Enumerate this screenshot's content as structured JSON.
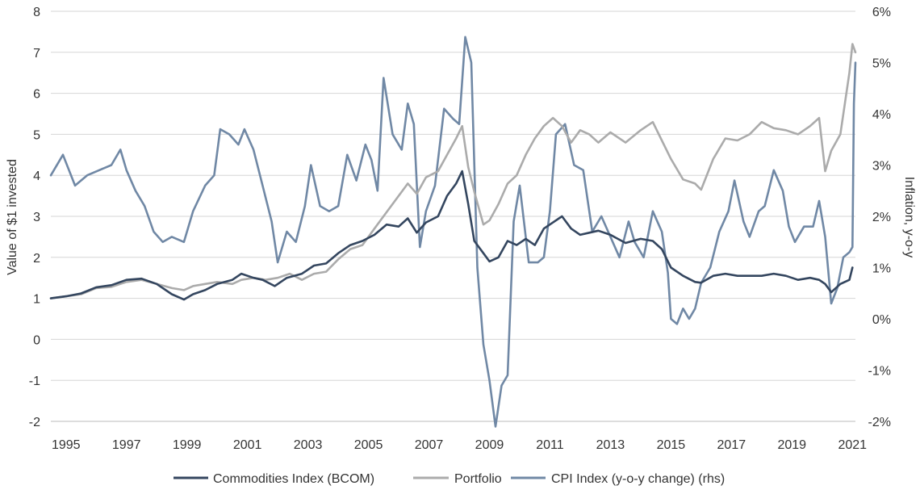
{
  "chart_data": {
    "type": "line",
    "title": "",
    "ylabel": "Value of $1 invested",
    "y2label": "Inflation, y-o-y",
    "ylim": [
      -2,
      8
    ],
    "y2lim": [
      -2,
      6
    ],
    "xlim": [
      1994.5,
      2021.1
    ],
    "grid": true,
    "legend_position": "bottom",
    "x_ticks": [
      "1995",
      "1997",
      "1999",
      "2001",
      "2003",
      "2005",
      "2007",
      "2009",
      "2011",
      "2013",
      "2015",
      "2017",
      "2019",
      "2021"
    ],
    "y_ticks": [
      "-2",
      "-1",
      "0",
      "1",
      "2",
      "3",
      "4",
      "5",
      "6",
      "7",
      "8"
    ],
    "y2_ticks": [
      "-2%",
      "-1%",
      "0%",
      "1%",
      "2%",
      "3%",
      "4%",
      "5%",
      "6%"
    ],
    "series": [
      {
        "name": "Commodities Index (BCOM)",
        "axis": "left",
        "color": "#34465f",
        "points": [
          [
            1994.5,
            1.0
          ],
          [
            1995.0,
            1.05
          ],
          [
            1995.5,
            1.12
          ],
          [
            1996.0,
            1.27
          ],
          [
            1996.5,
            1.32
          ],
          [
            1997.0,
            1.45
          ],
          [
            1997.5,
            1.48
          ],
          [
            1998.0,
            1.35
          ],
          [
            1998.5,
            1.1
          ],
          [
            1998.9,
            0.97
          ],
          [
            1999.2,
            1.1
          ],
          [
            1999.6,
            1.2
          ],
          [
            2000.0,
            1.35
          ],
          [
            2000.5,
            1.45
          ],
          [
            2000.8,
            1.6
          ],
          [
            2001.2,
            1.5
          ],
          [
            2001.5,
            1.45
          ],
          [
            2001.9,
            1.3
          ],
          [
            2002.3,
            1.5
          ],
          [
            2002.8,
            1.6
          ],
          [
            2003.2,
            1.8
          ],
          [
            2003.6,
            1.85
          ],
          [
            2004.0,
            2.1
          ],
          [
            2004.4,
            2.3
          ],
          [
            2004.8,
            2.4
          ],
          [
            2005.2,
            2.55
          ],
          [
            2005.6,
            2.8
          ],
          [
            2006.0,
            2.75
          ],
          [
            2006.3,
            2.95
          ],
          [
            2006.6,
            2.6
          ],
          [
            2006.9,
            2.85
          ],
          [
            2007.3,
            3.0
          ],
          [
            2007.6,
            3.5
          ],
          [
            2007.9,
            3.8
          ],
          [
            2008.1,
            4.1
          ],
          [
            2008.3,
            3.3
          ],
          [
            2008.5,
            2.4
          ],
          [
            2008.8,
            2.1
          ],
          [
            2009.0,
            1.9
          ],
          [
            2009.3,
            2.0
          ],
          [
            2009.6,
            2.4
          ],
          [
            2009.9,
            2.3
          ],
          [
            2010.2,
            2.45
          ],
          [
            2010.5,
            2.3
          ],
          [
            2010.8,
            2.7
          ],
          [
            2011.1,
            2.85
          ],
          [
            2011.4,
            3.0
          ],
          [
            2011.7,
            2.7
          ],
          [
            2012.0,
            2.55
          ],
          [
            2012.3,
            2.6
          ],
          [
            2012.6,
            2.65
          ],
          [
            2013.0,
            2.55
          ],
          [
            2013.5,
            2.35
          ],
          [
            2014.0,
            2.45
          ],
          [
            2014.4,
            2.4
          ],
          [
            2014.7,
            2.2
          ],
          [
            2015.0,
            1.75
          ],
          [
            2015.4,
            1.55
          ],
          [
            2015.8,
            1.4
          ],
          [
            2016.0,
            1.38
          ],
          [
            2016.4,
            1.55
          ],
          [
            2016.8,
            1.6
          ],
          [
            2017.2,
            1.55
          ],
          [
            2017.6,
            1.55
          ],
          [
            2018.0,
            1.55
          ],
          [
            2018.4,
            1.6
          ],
          [
            2018.8,
            1.55
          ],
          [
            2019.2,
            1.45
          ],
          [
            2019.6,
            1.5
          ],
          [
            2019.9,
            1.45
          ],
          [
            2020.1,
            1.35
          ],
          [
            2020.3,
            1.15
          ],
          [
            2020.6,
            1.35
          ],
          [
            2020.9,
            1.45
          ],
          [
            2021.0,
            1.75
          ]
        ]
      },
      {
        "name": "Portfolio",
        "axis": "left",
        "color": "#ababab",
        "points": [
          [
            1994.5,
            1.0
          ],
          [
            1995.0,
            1.05
          ],
          [
            1995.5,
            1.1
          ],
          [
            1996.0,
            1.25
          ],
          [
            1996.5,
            1.28
          ],
          [
            1997.0,
            1.4
          ],
          [
            1997.5,
            1.45
          ],
          [
            1998.0,
            1.35
          ],
          [
            1998.5,
            1.25
          ],
          [
            1998.9,
            1.2
          ],
          [
            1999.2,
            1.3
          ],
          [
            1999.6,
            1.35
          ],
          [
            2000.0,
            1.4
          ],
          [
            2000.5,
            1.35
          ],
          [
            2000.8,
            1.45
          ],
          [
            2001.2,
            1.5
          ],
          [
            2001.6,
            1.45
          ],
          [
            2002.0,
            1.5
          ],
          [
            2002.4,
            1.6
          ],
          [
            2002.8,
            1.45
          ],
          [
            2003.2,
            1.6
          ],
          [
            2003.6,
            1.65
          ],
          [
            2004.0,
            1.95
          ],
          [
            2004.4,
            2.2
          ],
          [
            2004.8,
            2.3
          ],
          [
            2005.2,
            2.7
          ],
          [
            2005.6,
            3.1
          ],
          [
            2006.0,
            3.5
          ],
          [
            2006.3,
            3.8
          ],
          [
            2006.6,
            3.55
          ],
          [
            2006.9,
            3.95
          ],
          [
            2007.3,
            4.1
          ],
          [
            2007.6,
            4.5
          ],
          [
            2007.9,
            4.9
          ],
          [
            2008.1,
            5.2
          ],
          [
            2008.3,
            4.2
          ],
          [
            2008.5,
            3.6
          ],
          [
            2008.8,
            2.8
          ],
          [
            2009.0,
            2.9
          ],
          [
            2009.3,
            3.3
          ],
          [
            2009.6,
            3.8
          ],
          [
            2009.9,
            4.0
          ],
          [
            2010.2,
            4.5
          ],
          [
            2010.5,
            4.9
          ],
          [
            2010.8,
            5.2
          ],
          [
            2011.1,
            5.4
          ],
          [
            2011.4,
            5.2
          ],
          [
            2011.7,
            4.8
          ],
          [
            2012.0,
            5.1
          ],
          [
            2012.3,
            5.0
          ],
          [
            2012.6,
            4.8
          ],
          [
            2013.0,
            5.05
          ],
          [
            2013.5,
            4.8
          ],
          [
            2014.0,
            5.1
          ],
          [
            2014.4,
            5.3
          ],
          [
            2014.7,
            4.85
          ],
          [
            2015.0,
            4.4
          ],
          [
            2015.4,
            3.9
          ],
          [
            2015.8,
            3.8
          ],
          [
            2016.0,
            3.65
          ],
          [
            2016.4,
            4.4
          ],
          [
            2016.8,
            4.9
          ],
          [
            2017.2,
            4.85
          ],
          [
            2017.6,
            5.0
          ],
          [
            2018.0,
            5.3
          ],
          [
            2018.4,
            5.15
          ],
          [
            2018.8,
            5.1
          ],
          [
            2019.2,
            5.0
          ],
          [
            2019.6,
            5.2
          ],
          [
            2019.9,
            5.4
          ],
          [
            2020.1,
            4.1
          ],
          [
            2020.3,
            4.6
          ],
          [
            2020.6,
            5.0
          ],
          [
            2020.9,
            6.5
          ],
          [
            2021.0,
            7.2
          ],
          [
            2021.1,
            7.0
          ]
        ]
      },
      {
        "name": "CPI Index (y-o-y change) (rhs)",
        "axis": "right",
        "color": "#7088a5",
        "points": [
          [
            1994.5,
            2.8
          ],
          [
            1994.9,
            3.2
          ],
          [
            1995.3,
            2.6
          ],
          [
            1995.7,
            2.8
          ],
          [
            1996.1,
            2.9
          ],
          [
            1996.5,
            3.0
          ],
          [
            1996.8,
            3.3
          ],
          [
            1997.0,
            2.9
          ],
          [
            1997.3,
            2.5
          ],
          [
            1997.6,
            2.2
          ],
          [
            1997.9,
            1.7
          ],
          [
            1998.2,
            1.5
          ],
          [
            1998.5,
            1.6
          ],
          [
            1998.9,
            1.5
          ],
          [
            1999.2,
            2.1
          ],
          [
            1999.6,
            2.6
          ],
          [
            1999.9,
            2.8
          ],
          [
            2000.1,
            3.7
          ],
          [
            2000.4,
            3.6
          ],
          [
            2000.7,
            3.4
          ],
          [
            2000.9,
            3.7
          ],
          [
            2001.2,
            3.3
          ],
          [
            2001.5,
            2.6
          ],
          [
            2001.8,
            1.9
          ],
          [
            2002.0,
            1.1
          ],
          [
            2002.3,
            1.7
          ],
          [
            2002.6,
            1.5
          ],
          [
            2002.9,
            2.2
          ],
          [
            2003.1,
            3.0
          ],
          [
            2003.4,
            2.2
          ],
          [
            2003.7,
            2.1
          ],
          [
            2004.0,
            2.2
          ],
          [
            2004.3,
            3.2
          ],
          [
            2004.6,
            2.7
          ],
          [
            2004.9,
            3.4
          ],
          [
            2005.1,
            3.1
          ],
          [
            2005.3,
            2.5
          ],
          [
            2005.5,
            4.7
          ],
          [
            2005.8,
            3.6
          ],
          [
            2006.1,
            3.3
          ],
          [
            2006.3,
            4.2
          ],
          [
            2006.5,
            3.8
          ],
          [
            2006.7,
            1.4
          ],
          [
            2006.9,
            2.1
          ],
          [
            2007.2,
            2.6
          ],
          [
            2007.5,
            4.1
          ],
          [
            2007.8,
            3.9
          ],
          [
            2008.0,
            3.8
          ],
          [
            2008.2,
            5.5
          ],
          [
            2008.4,
            5.0
          ],
          [
            2008.6,
            1.0
          ],
          [
            2008.8,
            -0.5
          ],
          [
            2009.0,
            -1.2
          ],
          [
            2009.2,
            -2.1
          ],
          [
            2009.4,
            -1.3
          ],
          [
            2009.6,
            -1.1
          ],
          [
            2009.8,
            1.9
          ],
          [
            2010.0,
            2.6
          ],
          [
            2010.3,
            1.1
          ],
          [
            2010.6,
            1.1
          ],
          [
            2010.8,
            1.2
          ],
          [
            2011.0,
            2.1
          ],
          [
            2011.2,
            3.6
          ],
          [
            2011.5,
            3.8
          ],
          [
            2011.8,
            3.0
          ],
          [
            2012.1,
            2.9
          ],
          [
            2012.4,
            1.7
          ],
          [
            2012.7,
            2.0
          ],
          [
            2013.0,
            1.6
          ],
          [
            2013.3,
            1.2
          ],
          [
            2013.6,
            1.9
          ],
          [
            2013.8,
            1.5
          ],
          [
            2014.1,
            1.2
          ],
          [
            2014.4,
            2.1
          ],
          [
            2014.7,
            1.7
          ],
          [
            2014.9,
            0.9
          ],
          [
            2015.0,
            0.0
          ],
          [
            2015.2,
            -0.1
          ],
          [
            2015.4,
            0.2
          ],
          [
            2015.6,
            0.0
          ],
          [
            2015.8,
            0.2
          ],
          [
            2016.0,
            0.7
          ],
          [
            2016.3,
            1.0
          ],
          [
            2016.6,
            1.7
          ],
          [
            2016.9,
            2.1
          ],
          [
            2017.1,
            2.7
          ],
          [
            2017.4,
            1.9
          ],
          [
            2017.6,
            1.6
          ],
          [
            2017.9,
            2.1
          ],
          [
            2018.1,
            2.2
          ],
          [
            2018.4,
            2.9
          ],
          [
            2018.7,
            2.5
          ],
          [
            2018.9,
            1.8
          ],
          [
            2019.1,
            1.5
          ],
          [
            2019.4,
            1.8
          ],
          [
            2019.7,
            1.8
          ],
          [
            2019.9,
            2.3
          ],
          [
            2020.1,
            1.6
          ],
          [
            2020.3,
            0.3
          ],
          [
            2020.5,
            0.6
          ],
          [
            2020.7,
            1.2
          ],
          [
            2020.9,
            1.3
          ],
          [
            2021.0,
            1.4
          ],
          [
            2021.05,
            4.2
          ],
          [
            2021.1,
            5.0
          ]
        ]
      }
    ]
  }
}
